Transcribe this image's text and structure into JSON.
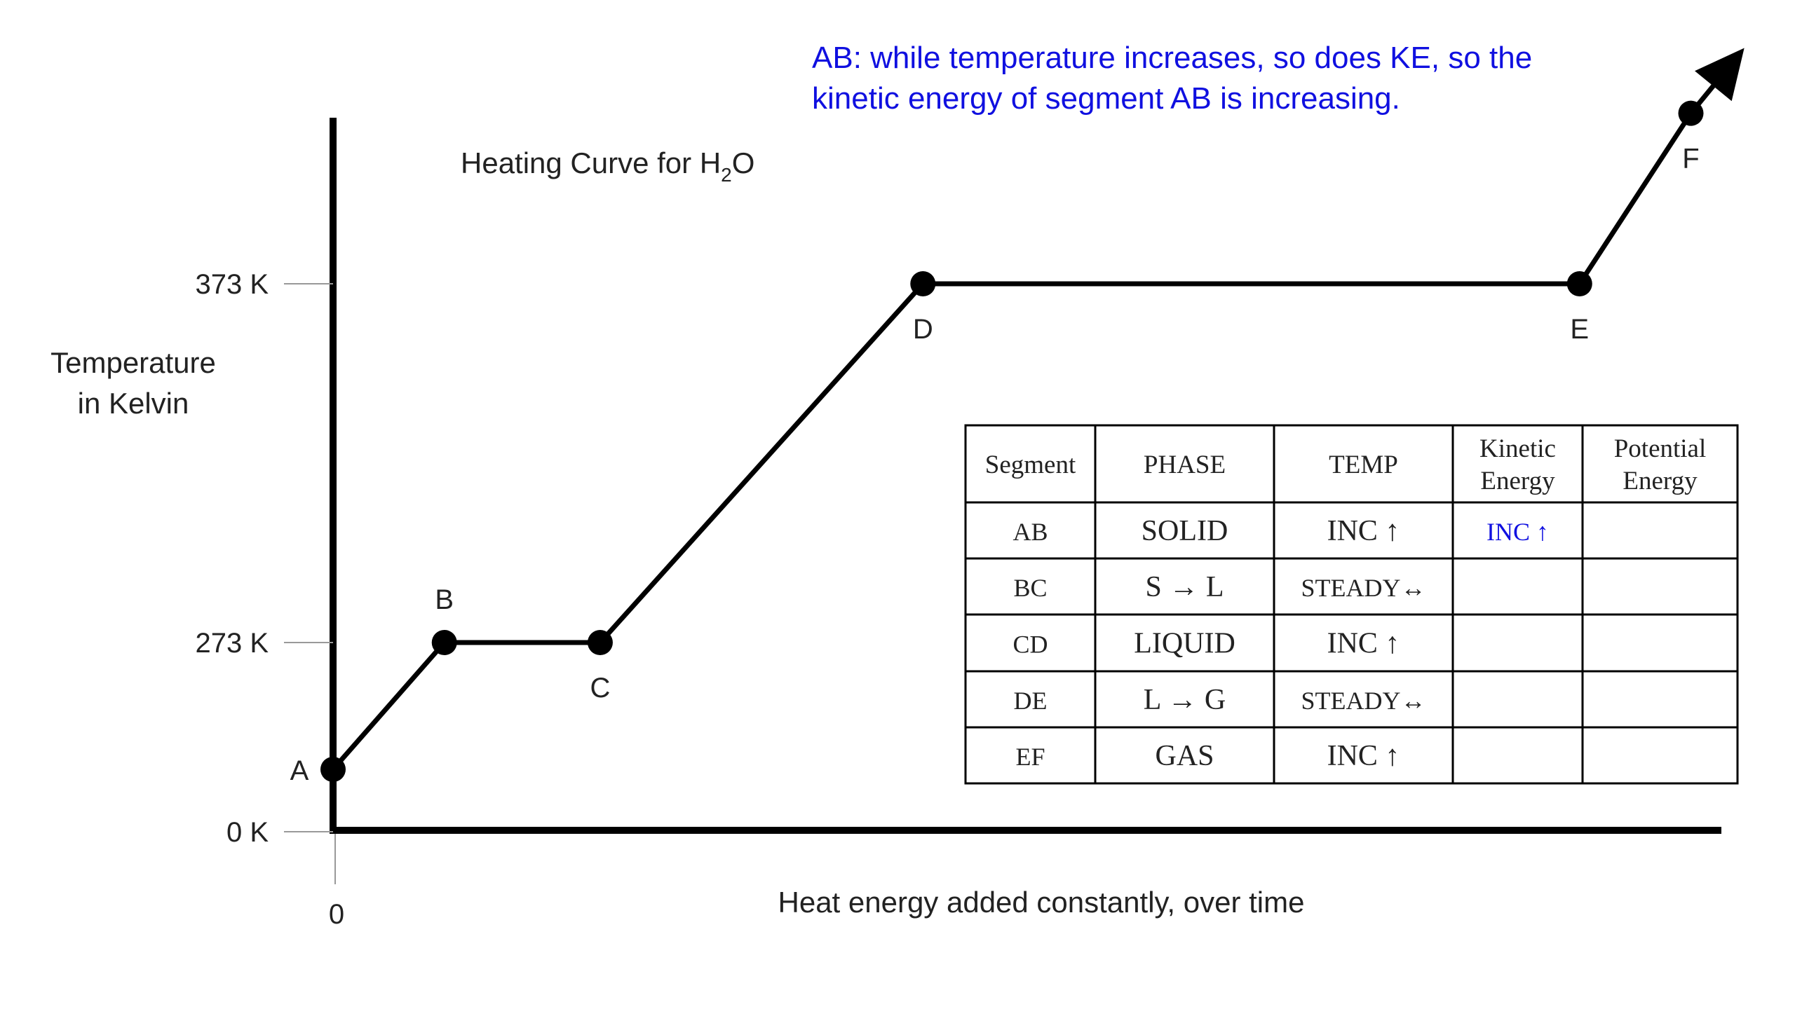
{
  "annotation": {
    "line1": "AB:  while temperature increases, so does KE, so the",
    "line2": "kinetic energy of segment AB is increasing.",
    "color": "#1010e0"
  },
  "chart_data": {
    "type": "line",
    "title": "Heating Curve for H",
    "title_sub": "2",
    "title_end": "O",
    "ylabel": [
      "Temperature",
      "in Kelvin"
    ],
    "xlabel": "Heat energy added constantly, over time",
    "x_tick_label": "0",
    "y_ticks": [
      {
        "value": 0,
        "label": "0 K"
      },
      {
        "value": 273,
        "label": "273 K"
      },
      {
        "value": 373,
        "label": "373 K"
      }
    ],
    "points": [
      {
        "label": "A",
        "x": 0,
        "y": 90
      },
      {
        "label": "B",
        "x": 1,
        "y": 273
      },
      {
        "label": "C",
        "x": 2.4,
        "y": 273
      },
      {
        "label": "D",
        "x": 5.3,
        "y": 373
      },
      {
        "label": "E",
        "x": 11.2,
        "y": 373
      },
      {
        "label": "F",
        "x": 12.2,
        "y": 420
      }
    ],
    "arrow_end": {
      "x": 12.6,
      "y": 435
    },
    "xlim": [
      0,
      12.6
    ],
    "ylim": [
      0,
      435
    ]
  },
  "table": {
    "headers": [
      "Segment",
      [
        "PHASE"
      ],
      [
        "TEMP"
      ],
      [
        "Kinetic",
        "Energy"
      ],
      [
        "Potential",
        "Energy"
      ]
    ],
    "rows": [
      [
        "AB",
        "SOLID",
        "INC ↑",
        "INC ↑",
        ""
      ],
      [
        "BC",
        "S → L",
        "STEADY↔",
        "",
        ""
      ],
      [
        "CD",
        "LIQUID",
        "INC ↑",
        "",
        ""
      ],
      [
        "DE",
        "L → G",
        "STEADY↔",
        "",
        ""
      ],
      [
        "EF",
        "GAS",
        "INC ↑",
        "",
        ""
      ]
    ],
    "highlight_color": "#1010e0"
  }
}
